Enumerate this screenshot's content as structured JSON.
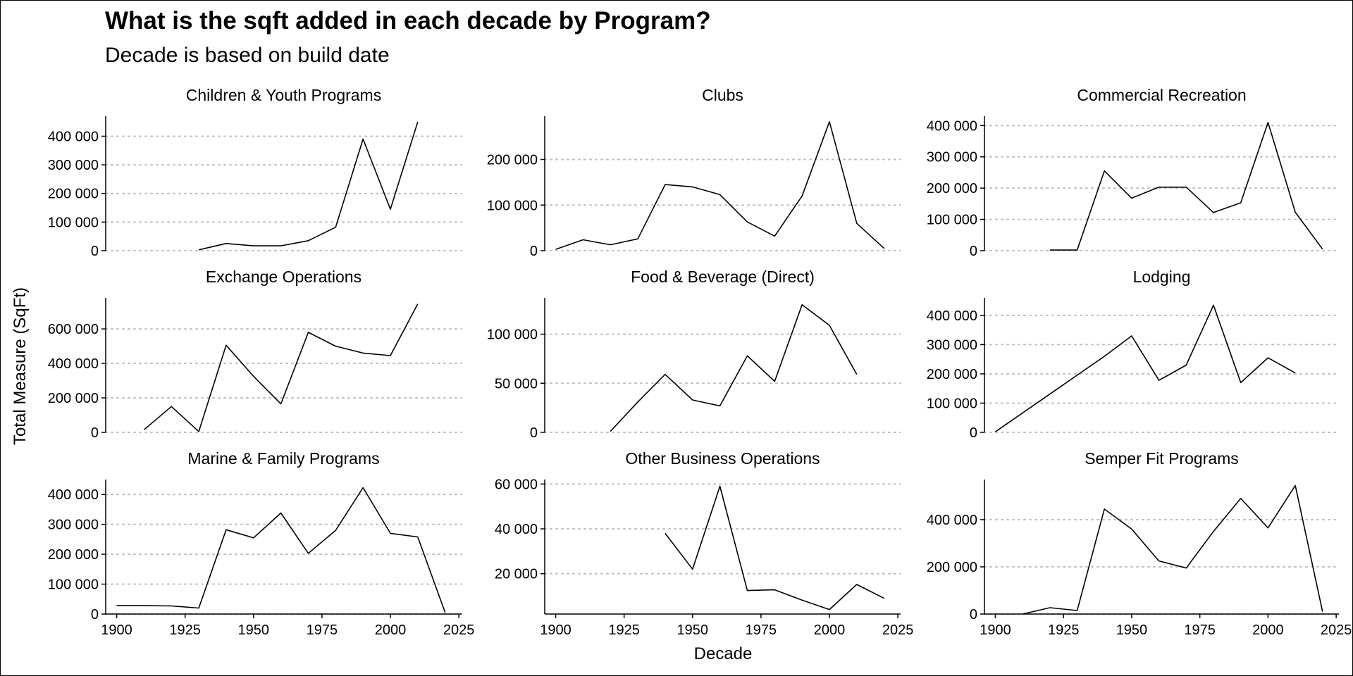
{
  "title": "What is the sqft added in each decade by Program?",
  "subtitle": "Decade is based on build date",
  "xlabel": "Decade",
  "ylabel": "Total Measure (SqFt)",
  "chart_data": {
    "type": "line",
    "layout": "facet-grid 3x3",
    "grid": "horizontal dotted major gridlines",
    "x_ticks": [
      1900,
      1925,
      1950,
      1975,
      2000,
      2025
    ],
    "x_tick_labels": [
      "1900",
      "1925",
      "1950",
      "1975",
      "2000",
      "2025"
    ],
    "xlim": [
      1896,
      2026
    ],
    "line_color": "#000000",
    "grid_color": "#bdbdbd",
    "panels": [
      {
        "title": "Children & Youth Programs",
        "ylim": [
          0,
          470000
        ],
        "y_ticks": [
          0,
          100000,
          200000,
          300000,
          400000
        ],
        "y_tick_labels": [
          "0",
          "100 000",
          "200 000",
          "300 000",
          "400 000"
        ],
        "x": [
          1930,
          1940,
          1950,
          1960,
          1970,
          1980,
          1990,
          2000,
          2010
        ],
        "y": [
          3000,
          25000,
          17000,
          17000,
          35000,
          82000,
          390000,
          145000,
          450000
        ]
      },
      {
        "title": "Clubs",
        "ylim": [
          0,
          295000
        ],
        "y_ticks": [
          0,
          100000,
          200000
        ],
        "y_tick_labels": [
          "0",
          "100 000",
          "200 000"
        ],
        "x": [
          1900,
          1910,
          1920,
          1930,
          1940,
          1950,
          1960,
          1970,
          1980,
          1990,
          2000,
          2010,
          2020
        ],
        "y": [
          3000,
          24000,
          13000,
          26000,
          145000,
          140000,
          123000,
          63000,
          32000,
          120000,
          283000,
          60000,
          5000
        ]
      },
      {
        "title": "Commercial Recreation",
        "ylim": [
          0,
          430000
        ],
        "y_ticks": [
          0,
          100000,
          200000,
          300000,
          400000
        ],
        "y_tick_labels": [
          "0",
          "100 000",
          "200 000",
          "300 000",
          "400 000"
        ],
        "x": [
          1920,
          1930,
          1940,
          1950,
          1960,
          1970,
          1980,
          1990,
          2000,
          2010,
          2020
        ],
        "y": [
          2000,
          2000,
          255000,
          168000,
          203000,
          203000,
          122000,
          153000,
          410000,
          123000,
          5000
        ]
      },
      {
        "title": "Exchange Operations",
        "ylim": [
          0,
          780000
        ],
        "y_ticks": [
          0,
          200000,
          400000,
          600000
        ],
        "y_tick_labels": [
          "0",
          "200 000",
          "400 000",
          "600 000"
        ],
        "x": [
          1910,
          1920,
          1930,
          1940,
          1950,
          1960,
          1970,
          1980,
          1990,
          2000,
          2010
        ],
        "y": [
          15000,
          150000,
          5000,
          505000,
          325000,
          165000,
          580000,
          500000,
          460000,
          445000,
          745000
        ]
      },
      {
        "title": "Food & Beverage (Direct)",
        "ylim": [
          0,
          137000
        ],
        "y_ticks": [
          0,
          50000,
          100000
        ],
        "y_tick_labels": [
          "0",
          "50 000",
          "100 000"
        ],
        "x": [
          1920,
          1930,
          1940,
          1950,
          1960,
          1970,
          1980,
          1990,
          2000,
          2010
        ],
        "y": [
          1000,
          31000,
          59000,
          33000,
          27000,
          78000,
          52000,
          130000,
          109000,
          59000
        ]
      },
      {
        "title": "Lodging",
        "ylim": [
          0,
          460000
        ],
        "y_ticks": [
          0,
          100000,
          200000,
          300000,
          400000
        ],
        "y_tick_labels": [
          "0",
          "100 000",
          "200 000",
          "300 000",
          "400 000"
        ],
        "x": [
          1900,
          1940,
          1950,
          1960,
          1970,
          1980,
          1990,
          2000,
          2010
        ],
        "y": [
          2000,
          260000,
          330000,
          178000,
          230000,
          435000,
          170000,
          255000,
          203000
        ]
      },
      {
        "title": "Marine & Family Programs",
        "ylim": [
          0,
          450000
        ],
        "y_ticks": [
          0,
          100000,
          200000,
          300000,
          400000
        ],
        "y_tick_labels": [
          "0",
          "100 000",
          "200 000",
          "300 000",
          "400 000"
        ],
        "x": [
          1900,
          1910,
          1920,
          1930,
          1940,
          1950,
          1960,
          1970,
          1980,
          1990,
          2000,
          2010,
          2020
        ],
        "y": [
          28000,
          28000,
          27000,
          20000,
          282000,
          255000,
          338000,
          203000,
          280000,
          423000,
          270000,
          258000,
          5000
        ]
      },
      {
        "title": "Other Business Operations",
        "ylim": [
          2000,
          62000
        ],
        "y_ticks": [
          20000,
          40000,
          60000
        ],
        "y_tick_labels": [
          "20 000",
          "40 000",
          "60 000"
        ],
        "x": [
          1940,
          1950,
          1960,
          1970,
          1980,
          1990,
          2000,
          2010,
          2020
        ],
        "y": [
          38000,
          22000,
          59000,
          12500,
          12800,
          8200,
          4000,
          15200,
          9000
        ]
      },
      {
        "title": "Semper Fit Programs",
        "ylim": [
          0,
          570000
        ],
        "y_ticks": [
          0,
          200000,
          400000
        ],
        "y_tick_labels": [
          "0",
          "200 000",
          "400 000"
        ],
        "x": [
          1910,
          1920,
          1930,
          1940,
          1950,
          1960,
          1970,
          1980,
          1990,
          2000,
          2010,
          2020
        ],
        "y": [
          0,
          27000,
          15000,
          445000,
          360000,
          225000,
          195000,
          350000,
          490000,
          365000,
          545000,
          10000
        ]
      }
    ]
  }
}
